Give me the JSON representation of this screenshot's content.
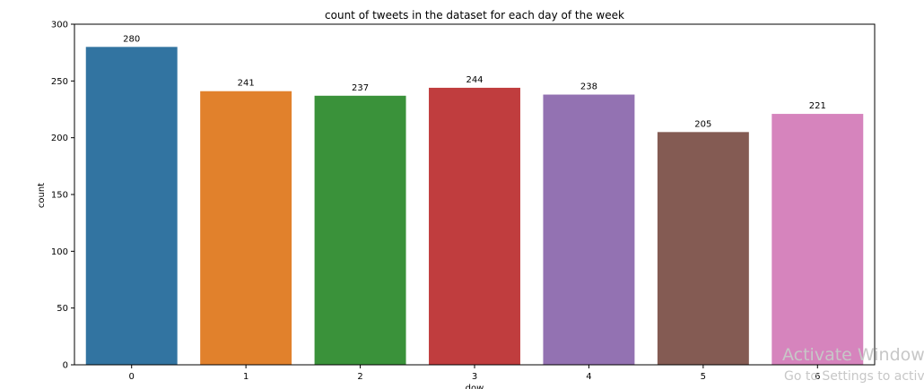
{
  "chart_data": {
    "type": "bar",
    "title": "count of tweets in the dataset for each day of the week",
    "xlabel": "dow",
    "ylabel": "count",
    "categories": [
      "0",
      "1",
      "2",
      "3",
      "4",
      "5",
      "6"
    ],
    "values": [
      280,
      241,
      237,
      244,
      238,
      205,
      221
    ],
    "data_labels": [
      "280",
      "241",
      "237",
      "244",
      "238",
      "205",
      "221"
    ],
    "colors": [
      "#3274a1",
      "#e1812c",
      "#3a923a",
      "#c03d3e",
      "#9372b2",
      "#845b53",
      "#d684bd"
    ],
    "ylim": [
      0,
      300
    ],
    "yticks": [
      0,
      50,
      100,
      150,
      200,
      250,
      300
    ],
    "ytick_labels": [
      "0",
      "50",
      "100",
      "150",
      "200",
      "250",
      "300"
    ],
    "grid": false,
    "legend": "none"
  },
  "watermark": {
    "line1": "Activate Windows",
    "line2": "Go to Settings to activa"
  }
}
